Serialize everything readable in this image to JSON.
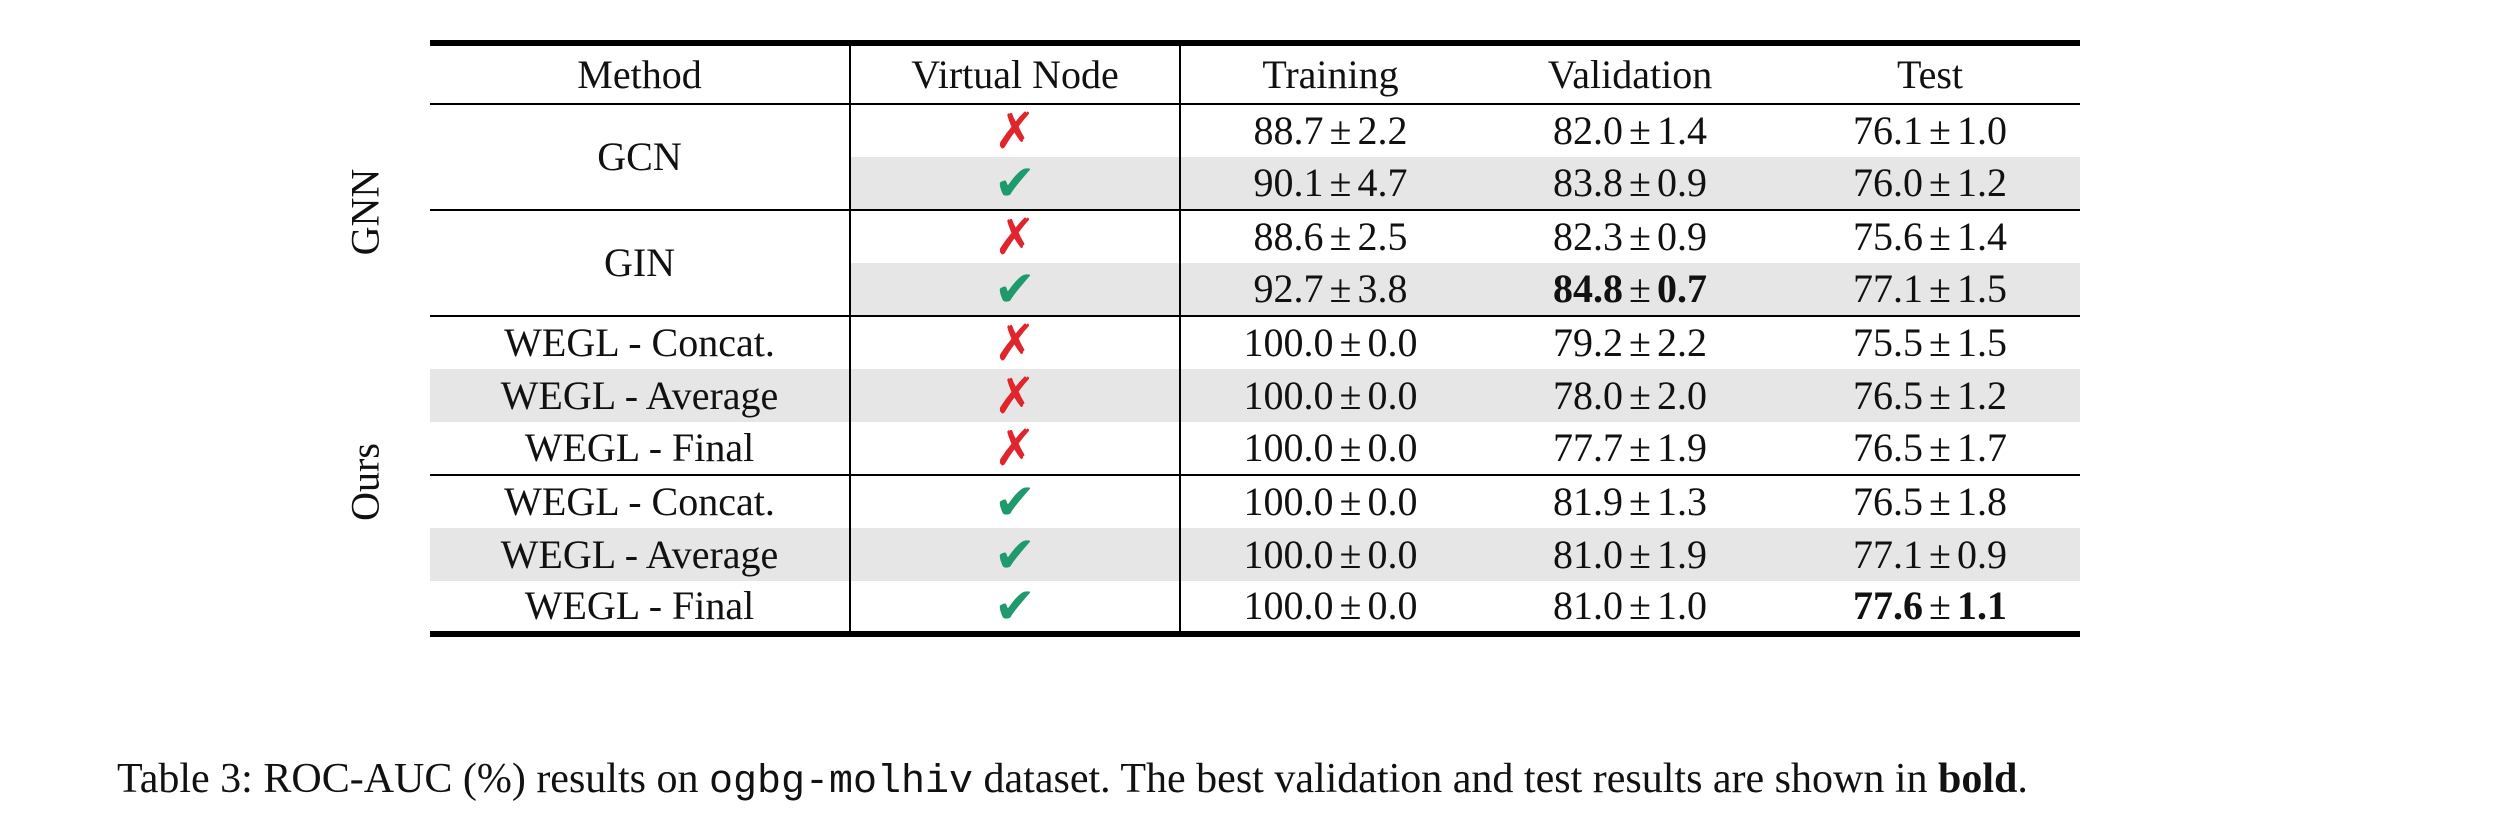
{
  "table": {
    "headers": [
      "Method",
      "Virtual Node",
      "Training",
      "Validation",
      "Test"
    ],
    "groups": [
      {
        "label": "GNN"
      },
      {
        "label": "Ours"
      }
    ],
    "methods": [
      "GCN",
      "GIN",
      "WEGL - Concat.",
      "WEGL - Average",
      "WEGL - Final",
      "WEGL - Concat.",
      "WEGL - Average",
      "WEGL - Final"
    ],
    "marks": {
      "no": "✗",
      "yes": "✔"
    },
    "pm": "±",
    "rows": [
      {
        "vn": "no",
        "train": [
          "88.7",
          "2.2"
        ],
        "val": [
          "82.0",
          "1.4"
        ],
        "test": [
          "76.1",
          "1.0"
        ]
      },
      {
        "vn": "yes",
        "train": [
          "90.1",
          "4.7"
        ],
        "val": [
          "83.8",
          "0.9"
        ],
        "test": [
          "76.0",
          "1.2"
        ]
      },
      {
        "vn": "no",
        "train": [
          "88.6",
          "2.5"
        ],
        "val": [
          "82.3",
          "0.9"
        ],
        "test": [
          "75.6",
          "1.4"
        ]
      },
      {
        "vn": "yes",
        "train": [
          "92.7",
          "3.8"
        ],
        "val": [
          "84.8",
          "0.7"
        ],
        "test": [
          "77.1",
          "1.5"
        ]
      },
      {
        "vn": "no",
        "train": [
          "100.0",
          "0.0"
        ],
        "val": [
          "79.2",
          "2.2"
        ],
        "test": [
          "75.5",
          "1.5"
        ]
      },
      {
        "vn": "no",
        "train": [
          "100.0",
          "0.0"
        ],
        "val": [
          "78.0",
          "2.0"
        ],
        "test": [
          "76.5",
          "1.2"
        ]
      },
      {
        "vn": "no",
        "train": [
          "100.0",
          "0.0"
        ],
        "val": [
          "77.7",
          "1.9"
        ],
        "test": [
          "76.5",
          "1.7"
        ]
      },
      {
        "vn": "yes",
        "train": [
          "100.0",
          "0.0"
        ],
        "val": [
          "81.9",
          "1.3"
        ],
        "test": [
          "76.5",
          "1.8"
        ]
      },
      {
        "vn": "yes",
        "train": [
          "100.0",
          "0.0"
        ],
        "val": [
          "81.0",
          "1.9"
        ],
        "test": [
          "77.1",
          "0.9"
        ]
      },
      {
        "vn": "yes",
        "train": [
          "100.0",
          "0.0"
        ],
        "val": [
          "81.0",
          "1.0"
        ],
        "test": [
          "77.6",
          "1.1"
        ]
      }
    ]
  },
  "caption": {
    "prefix": "Table 3: ROC-AUC (%) results on ",
    "dataset": "ogbg-molhiv",
    "middle": " dataset. The best validation and test results are shown in ",
    "bold_word": "bold",
    "end": "."
  }
}
